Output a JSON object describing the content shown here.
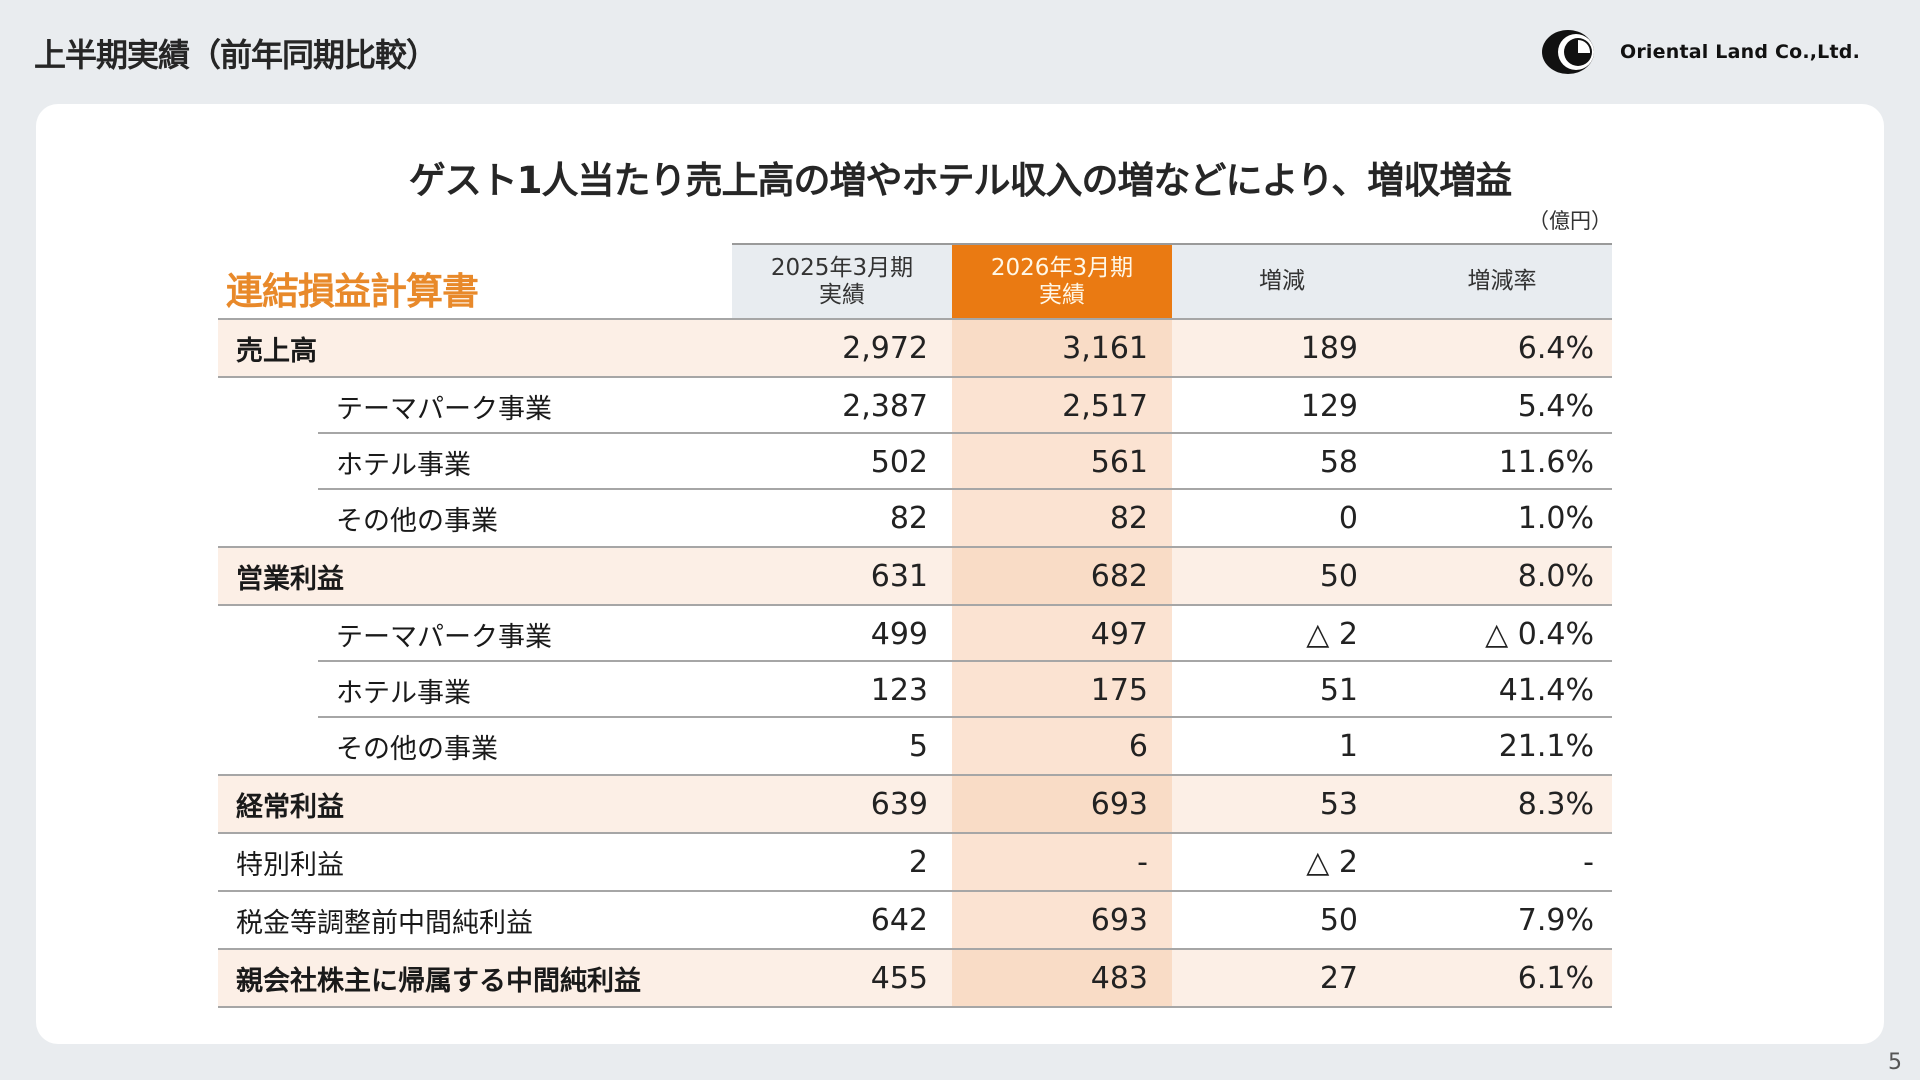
{
  "page": {
    "title": "上半期実績（前年同期比較）",
    "page_number": "5"
  },
  "logo": {
    "icon": "oriental-land-logo-icon",
    "text": "Oriental Land Co.,Ltd."
  },
  "slide": {
    "headline": "ゲスト1人当たり売上高の増やホテル収入の増などにより、増収増益",
    "unit": "（億円）",
    "statement_title": "連結損益計算書",
    "accent_color": "#ea7a12",
    "title_color": "#e8892a"
  },
  "table": {
    "columns": [
      {
        "label_line1": "2025年3月期",
        "label_line2": "実績"
      },
      {
        "label_line1": "2026年3月期",
        "label_line2": "実績"
      },
      {
        "label_line1": "増減",
        "label_line2": ""
      },
      {
        "label_line1": "増減率",
        "label_line2": ""
      }
    ],
    "rows": [
      {
        "label": "売上高",
        "type": "main",
        "values": [
          "2,972",
          "3,161",
          "189",
          "6.4%"
        ]
      },
      {
        "label": "テーマパーク事業",
        "type": "sub",
        "values": [
          "2,387",
          "2,517",
          "129",
          "5.4%"
        ]
      },
      {
        "label": "ホテル事業",
        "type": "sub",
        "values": [
          "502",
          "561",
          "58",
          "11.6%"
        ]
      },
      {
        "label": "その他の事業",
        "type": "sub",
        "values": [
          "82",
          "82",
          "0",
          "1.0%"
        ]
      },
      {
        "label": "営業利益",
        "type": "main",
        "values": [
          "631",
          "682",
          "50",
          "8.0%"
        ]
      },
      {
        "label": "テーマパーク事業",
        "type": "sub",
        "values": [
          "499",
          "497",
          "△ 2",
          "△ 0.4%"
        ]
      },
      {
        "label": "ホテル事業",
        "type": "sub",
        "values": [
          "123",
          "175",
          "51",
          "41.4%"
        ]
      },
      {
        "label": "その他の事業",
        "type": "sub",
        "values": [
          "5",
          "6",
          "1",
          "21.1%"
        ]
      },
      {
        "label": "経常利益",
        "type": "main",
        "values": [
          "639",
          "693",
          "53",
          "8.3%"
        ]
      },
      {
        "label": "特別利益",
        "type": "plain",
        "values": [
          "2",
          "-",
          "△ 2",
          "-"
        ]
      },
      {
        "label": "税金等調整前中間純利益",
        "type": "plain",
        "values": [
          "642",
          "693",
          "50",
          "7.9%"
        ]
      },
      {
        "label": "親会社株主に帰属する中間純利益",
        "type": "main",
        "values": [
          "455",
          "483",
          "27",
          "6.1%"
        ]
      }
    ]
  }
}
